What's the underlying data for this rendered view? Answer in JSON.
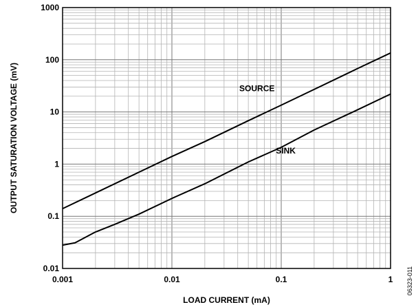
{
  "chart_data": {
    "type": "line",
    "title": "",
    "xlabel": "LOAD CURRENT (mA)",
    "ylabel": "OUTPUT SATURATION VOLTAGE (mV)",
    "x_scale": "log",
    "y_scale": "log",
    "xlim": [
      0.001,
      1
    ],
    "ylim": [
      0.01,
      1000
    ],
    "x_ticks": [
      0.001,
      0.01,
      0.1,
      1
    ],
    "x_tick_labels": [
      "0.001",
      "0.01",
      "0.1",
      "1"
    ],
    "y_ticks": [
      0.01,
      0.1,
      1,
      10,
      100,
      1000
    ],
    "y_tick_labels": [
      "0.01",
      "0.1",
      "1",
      "10",
      "100",
      "1000"
    ],
    "grid": true,
    "legend": "none",
    "series": [
      {
        "name": "SOURCE",
        "color": "#000000",
        "x": [
          0.001,
          0.002,
          0.005,
          0.01,
          0.02,
          0.05,
          0.1,
          0.2,
          0.5,
          1
        ],
        "y": [
          0.14,
          0.28,
          0.7,
          1.4,
          2.7,
          6.8,
          13.5,
          27,
          68,
          135
        ]
      },
      {
        "name": "SINK",
        "color": "#000000",
        "x": [
          0.001,
          0.0013,
          0.002,
          0.003,
          0.005,
          0.01,
          0.02,
          0.05,
          0.1,
          0.2,
          0.5,
          1
        ],
        "y": [
          0.028,
          0.031,
          0.05,
          0.07,
          0.11,
          0.22,
          0.42,
          1.1,
          2.1,
          4.5,
          11,
          22
        ]
      }
    ],
    "annotations": [
      {
        "text": "SOURCE",
        "x": 0.06,
        "y": 25
      },
      {
        "text": "SINK",
        "x": 0.11,
        "y": 1.6
      }
    ]
  },
  "figure_id": "06323-011"
}
